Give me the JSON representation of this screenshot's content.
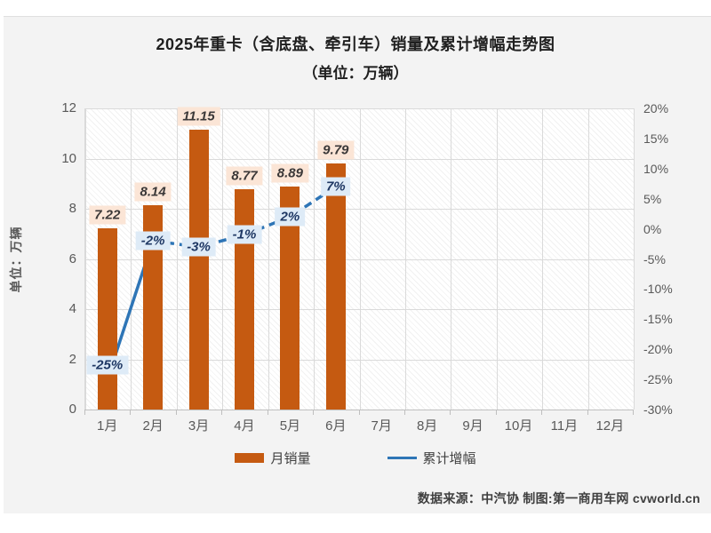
{
  "title": {
    "line1": "2025年重卡（含底盘、牵引车）销量及累计增幅走势图",
    "line2": "（单位：万辆）"
  },
  "chart_data": {
    "type": "bar+line combo",
    "title": "2025年重卡（含底盘、牵引车）销量及累计增幅走势图",
    "subtitle": "（单位：万辆）",
    "categories": [
      "1月",
      "2月",
      "3月",
      "4月",
      "5月",
      "6月",
      "7月",
      "8月",
      "9月",
      "10月",
      "11月",
      "12月"
    ],
    "series": [
      {
        "name": "月销量",
        "type": "bar",
        "axis": "left",
        "color": "#C55A11",
        "values": [
          7.22,
          8.14,
          11.15,
          8.77,
          8.89,
          9.79
        ],
        "labels": [
          "7.22",
          "8.14",
          "11.15",
          "8.77",
          "8.89",
          "9.79"
        ]
      },
      {
        "name": "累计增幅",
        "type": "line",
        "axis": "right",
        "color": "#2E75B6",
        "values": [
          -25,
          -2,
          -3,
          -1,
          2,
          7
        ],
        "labels": [
          "-25%",
          "-2%",
          "-3%",
          "-1%",
          "2%",
          "7%"
        ]
      }
    ],
    "left_axis": {
      "title": "单位：万辆",
      "min": 0,
      "max": 12,
      "step": 2
    },
    "right_axis": {
      "min": -30,
      "max": 20,
      "step": 5,
      "suffix": "%"
    },
    "grid": true,
    "legend_position": "bottom",
    "plot_background": "diagonal-hatch"
  },
  "legend": [
    {
      "label": "月销量",
      "swatch": "bar",
      "color": "#C55A11"
    },
    {
      "label": "累计增幅",
      "swatch": "line",
      "color": "#2E75B6"
    }
  ],
  "footer": {
    "text": "数据来源：中汽协  制图:第一商用车网 cvworld.cn"
  },
  "colors": {
    "canvas": "#F3F3F3",
    "bar": "#C55A11",
    "line": "#2E75B6",
    "bar_label_bg": "#FBE5D6",
    "bar_label_text": "#3B3838",
    "line_label_bg": "#DEEBF7",
    "line_label_text": "#1F3864",
    "gridline": "#DADADA",
    "axis_text": "#595959"
  }
}
